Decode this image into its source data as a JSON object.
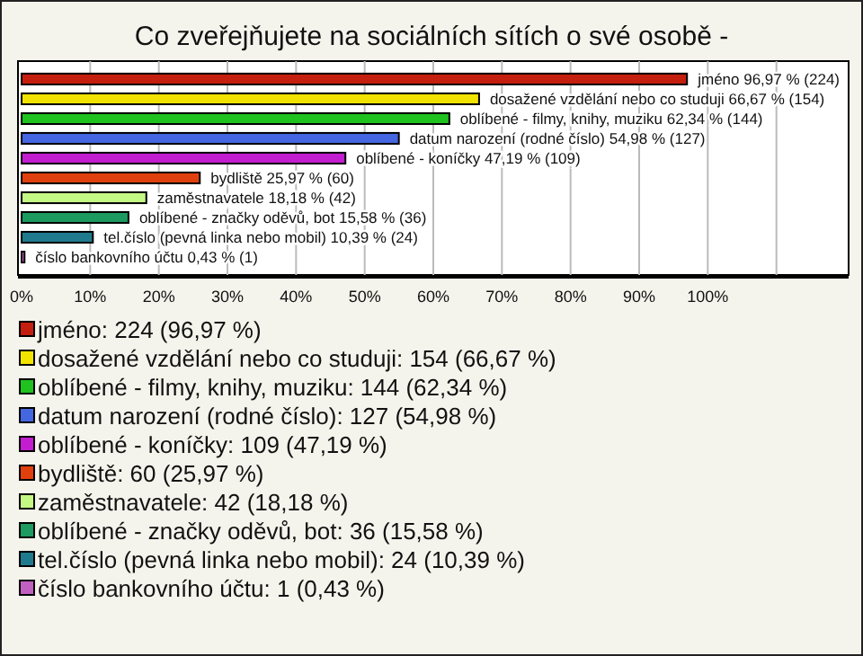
{
  "chart_data": {
    "type": "bar",
    "orientation": "horizontal",
    "title": "Co zveřejňujete na sociálních sítích o své osobě -",
    "categories": [
      "jméno",
      "dosažené vzdělání nebo co studuji",
      "oblíbené - filmy, knihy, muziku",
      "datum narození (rodné číslo)",
      "oblíbené - koníčky",
      "bydliště",
      "zaměstnavatele",
      "oblíbené - značky oděvů, bot",
      "tel.číslo (pevná linka nebo mobil)",
      "číslo bankovního účtu"
    ],
    "series": [
      {
        "name": "jméno: 224 (96,97 %)",
        "color": "#c41e0e",
        "values": [
          96.97,
          null,
          null,
          null,
          null,
          null,
          null,
          null,
          null,
          null
        ],
        "value_labels": [
          "96,97 % (224)",
          null,
          null,
          null,
          null,
          null,
          null,
          null,
          null,
          null
        ]
      },
      {
        "name": "dosažené vzdělání nebo co studuji: 154 (66,67 %)",
        "color": "#f2e200",
        "values": [
          null,
          66.67,
          null,
          null,
          null,
          null,
          null,
          null,
          null,
          null
        ],
        "value_labels": [
          null,
          "66,67 % (154)",
          null,
          null,
          null,
          null,
          null,
          null,
          null,
          null
        ]
      },
      {
        "name": "oblíbené - filmy, knihy, muziku: 144 (62,34 %)",
        "color": "#1fc21f",
        "values": [
          null,
          null,
          62.34,
          null,
          null,
          null,
          null,
          null,
          null,
          null
        ],
        "value_labels": [
          null,
          null,
          "62,34 % (144)",
          null,
          null,
          null,
          null,
          null,
          null,
          null
        ]
      },
      {
        "name": "datum narození (rodné číslo): 127 (54,98 %)",
        "color": "#4466e0",
        "values": [
          null,
          null,
          null,
          54.98,
          null,
          null,
          null,
          null,
          null,
          null
        ],
        "value_labels": [
          null,
          null,
          null,
          "54,98 % (127)",
          null,
          null,
          null,
          null,
          null,
          null
        ]
      },
      {
        "name": "oblíbené - koníčky: 109 (47,19 %)",
        "color": "#c21ed0",
        "values": [
          null,
          null,
          null,
          null,
          47.19,
          null,
          null,
          null,
          null,
          null
        ],
        "value_labels": [
          null,
          null,
          null,
          null,
          "47,19 % (109)",
          null,
          null,
          null,
          null,
          null
        ]
      },
      {
        "name": "bydliště: 60 (25,97 %)",
        "color": "#e0400e",
        "values": [
          null,
          null,
          null,
          null,
          null,
          25.97,
          null,
          null,
          null,
          null
        ],
        "value_labels": [
          null,
          null,
          null,
          null,
          null,
          "25,97 % (60)",
          null,
          null,
          null,
          null
        ]
      },
      {
        "name": "zaměstnavatele: 42 (18,18 %)",
        "color": "#c4f884",
        "values": [
          null,
          null,
          null,
          null,
          null,
          null,
          18.18,
          null,
          null,
          null
        ],
        "value_labels": [
          null,
          null,
          null,
          null,
          null,
          null,
          "18,18 % (42)",
          null,
          null,
          null
        ]
      },
      {
        "name": "oblíbené - značky oděvů, bot: 36 (15,58 %)",
        "color": "#1c9a60",
        "values": [
          null,
          null,
          null,
          null,
          null,
          null,
          null,
          15.58,
          null,
          null
        ],
        "value_labels": [
          null,
          null,
          null,
          null,
          null,
          null,
          null,
          "15,58 % (36)",
          null,
          null
        ]
      },
      {
        "name": "tel.číslo (pevná linka nebo mobil): 24 (10,39 %)",
        "color": "#207a8e",
        "values": [
          null,
          null,
          null,
          null,
          null,
          null,
          null,
          null,
          10.39,
          null
        ],
        "value_labels": [
          null,
          null,
          null,
          null,
          null,
          null,
          null,
          null,
          "10,39 % (24)",
          null
        ]
      },
      {
        "name": "číslo bankovního účtu: 1 (0,43 %)",
        "color": "#c060c0",
        "values": [
          null,
          null,
          null,
          null,
          null,
          null,
          null,
          null,
          null,
          0.43
        ],
        "value_labels": [
          null,
          null,
          null,
          null,
          null,
          null,
          null,
          null,
          null,
          "0,43 % (1)"
        ]
      }
    ],
    "xlim": [
      0,
      120
    ],
    "xticks": [
      {
        "value": 0,
        "label": "0%"
      },
      {
        "value": 10,
        "label": "10%"
      },
      {
        "value": 20,
        "label": "20%"
      },
      {
        "value": 30,
        "label": "30%"
      },
      {
        "value": 40,
        "label": "40%"
      },
      {
        "value": 50,
        "label": "50%"
      },
      {
        "value": 60,
        "label": "60%"
      },
      {
        "value": 70,
        "label": "70%"
      },
      {
        "value": 80,
        "label": "80%"
      },
      {
        "value": 90,
        "label": "90%"
      },
      {
        "value": 100,
        "label": "100%"
      },
      {
        "value": 110,
        "label": null
      }
    ],
    "grid": "x",
    "legend": "bottom"
  }
}
